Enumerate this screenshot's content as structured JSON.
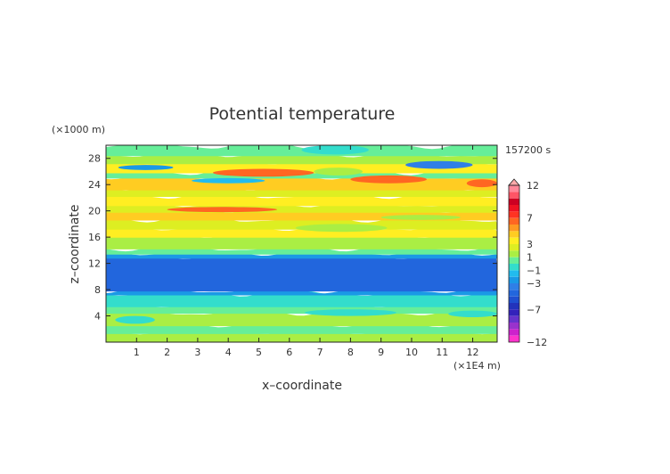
{
  "chart_data": {
    "type": "heatmap",
    "title": "Potential temperature",
    "xlabel": "x–coordinate",
    "ylabel": "z–coordinate",
    "x_unit": "(×1E4 m)",
    "y_unit": "(×1000 m)",
    "time_label": "157200 s",
    "xlim": [
      0,
      12.8
    ],
    "ylim": [
      0,
      30
    ],
    "x_ticks": [
      "1",
      "2",
      "3",
      "4",
      "5",
      "6",
      "7",
      "8",
      "9",
      "10",
      "11",
      "12"
    ],
    "y_ticks": [
      "4",
      "8",
      "12",
      "16",
      "20",
      "24",
      "28"
    ],
    "x_tick_values": [
      1,
      2,
      3,
      4,
      5,
      6,
      7,
      8,
      9,
      10,
      11,
      12
    ],
    "y_tick_values": [
      4,
      8,
      12,
      16,
      20,
      24,
      28
    ],
    "colorbar": {
      "levels": [
        -12,
        -11,
        -10,
        -9,
        -8,
        -7,
        -6,
        -5,
        -4,
        -3,
        -2,
        -1,
        0,
        1,
        2,
        3,
        4,
        5,
        6,
        7,
        8,
        9,
        10,
        11,
        12
      ],
      "labels": [
        {
          "value": 12,
          "text": "12"
        },
        {
          "value": 7,
          "text": "7"
        },
        {
          "value": 3,
          "text": "3"
        },
        {
          "value": 1,
          "text": "1"
        },
        {
          "value": -1,
          "text": "−1"
        },
        {
          "value": -3,
          "text": "−3"
        },
        {
          "value": -7,
          "text": "−7"
        },
        {
          "value": -12,
          "text": "−12"
        }
      ],
      "colors": [
        "#ff33cc",
        "#cc22cc",
        "#9933cc",
        "#6633cc",
        "#3322bb",
        "#2233bb",
        "#1f4fd0",
        "#2266dd",
        "#2f7fe6",
        "#1a99e6",
        "#22bbee",
        "#33ddcc",
        "#66ee99",
        "#aaee44",
        "#ddee22",
        "#ffee22",
        "#ffcc22",
        "#ff9922",
        "#ff6622",
        "#ff3322",
        "#ee1122",
        "#cc0022",
        "#ff5566",
        "#ff8899",
        "#ffaaaa"
      ]
    },
    "bands": [
      {
        "z": [
          0,
          1.5
        ],
        "value": 1.2
      },
      {
        "z": [
          1.5,
          2.7
        ],
        "value": 0.5
      },
      {
        "z": [
          2.7,
          4.6
        ],
        "value": 1.4
      },
      {
        "z": [
          4.6,
          5.6
        ],
        "value": 0.5
      },
      {
        "z": [
          5.6,
          7.4
        ],
        "value": -0.4
      },
      {
        "z": [
          7.4,
          8.0
        ],
        "value": -2.2
      },
      {
        "z": [
          8.0,
          13.0
        ],
        "value": -4.3
      },
      {
        "z": [
          13.0,
          13.6
        ],
        "value": -2.2
      },
      {
        "z": [
          13.6,
          14.4
        ],
        "value": 0.3
      },
      {
        "z": [
          14.4,
          16.2
        ],
        "value": 1.6
      },
      {
        "z": [
          16.2,
          17.4
        ],
        "value": 3.2
      },
      {
        "z": [
          17.4,
          18.8
        ],
        "value": 2.2
      },
      {
        "z": [
          18.8,
          20.0
        ],
        "value": 4.0
      },
      {
        "z": [
          20.0,
          21.0
        ],
        "value": 2.3
      },
      {
        "z": [
          21.0,
          22.4
        ],
        "value": 3.8
      },
      {
        "z": [
          22.4,
          23.4
        ],
        "value": 2.8
      },
      {
        "z": [
          23.4,
          25.2
        ],
        "value": 4.5
      },
      {
        "z": [
          25.2,
          26.0
        ],
        "value": 0.8
      },
      {
        "z": [
          26.0,
          27.4
        ],
        "value": 3.0
      },
      {
        "z": [
          27.4,
          28.6
        ],
        "value": 1.4
      },
      {
        "z": [
          28.6,
          30.0
        ],
        "value": 0.6
      }
    ],
    "features": [
      {
        "x": [
          3.5,
          6.8
        ],
        "z": [
          25.2,
          26.4
        ],
        "value": 6.2
      },
      {
        "x": [
          8.0,
          10.5
        ],
        "z": [
          24.2,
          25.4
        ],
        "value": 6.8
      },
      {
        "x": [
          11.8,
          12.8
        ],
        "z": [
          23.6,
          24.8
        ],
        "value": 6.5
      },
      {
        "x": [
          0.4,
          2.2
        ],
        "z": [
          26.2,
          27.0
        ],
        "value": -2.8
      },
      {
        "x": [
          9.8,
          12.0
        ],
        "z": [
          26.4,
          27.6
        ],
        "value": -3.2
      },
      {
        "x": [
          2.8,
          5.2
        ],
        "z": [
          24.2,
          25.0
        ],
        "value": -1.2
      },
      {
        "x": [
          6.8,
          8.4
        ],
        "z": [
          25.4,
          26.6
        ],
        "value": 1.0
      },
      {
        "x": [
          0.0,
          1.6
        ],
        "z": [
          28.6,
          30.0
        ],
        "value": 0.4
      },
      {
        "x": [
          6.4,
          8.6
        ],
        "z": [
          28.6,
          30.0
        ],
        "value": -0.3
      },
      {
        "x": [
          2.0,
          5.6
        ],
        "z": [
          19.8,
          20.6
        ],
        "value": 6.0
      },
      {
        "x": [
          9.0,
          11.6
        ],
        "z": [
          18.6,
          19.4
        ],
        "value": 1.2
      },
      {
        "x": [
          6.2,
          9.2
        ],
        "z": [
          16.8,
          18.0
        ],
        "value": 1.3
      },
      {
        "x": [
          0.3,
          1.6
        ],
        "z": [
          2.8,
          4.0
        ],
        "value": -0.2
      },
      {
        "x": [
          6.5,
          9.5
        ],
        "z": [
          4.0,
          5.0
        ],
        "value": -0.2
      },
      {
        "x": [
          11.2,
          12.8
        ],
        "z": [
          3.8,
          4.8
        ],
        "value": -0.1
      }
    ]
  }
}
